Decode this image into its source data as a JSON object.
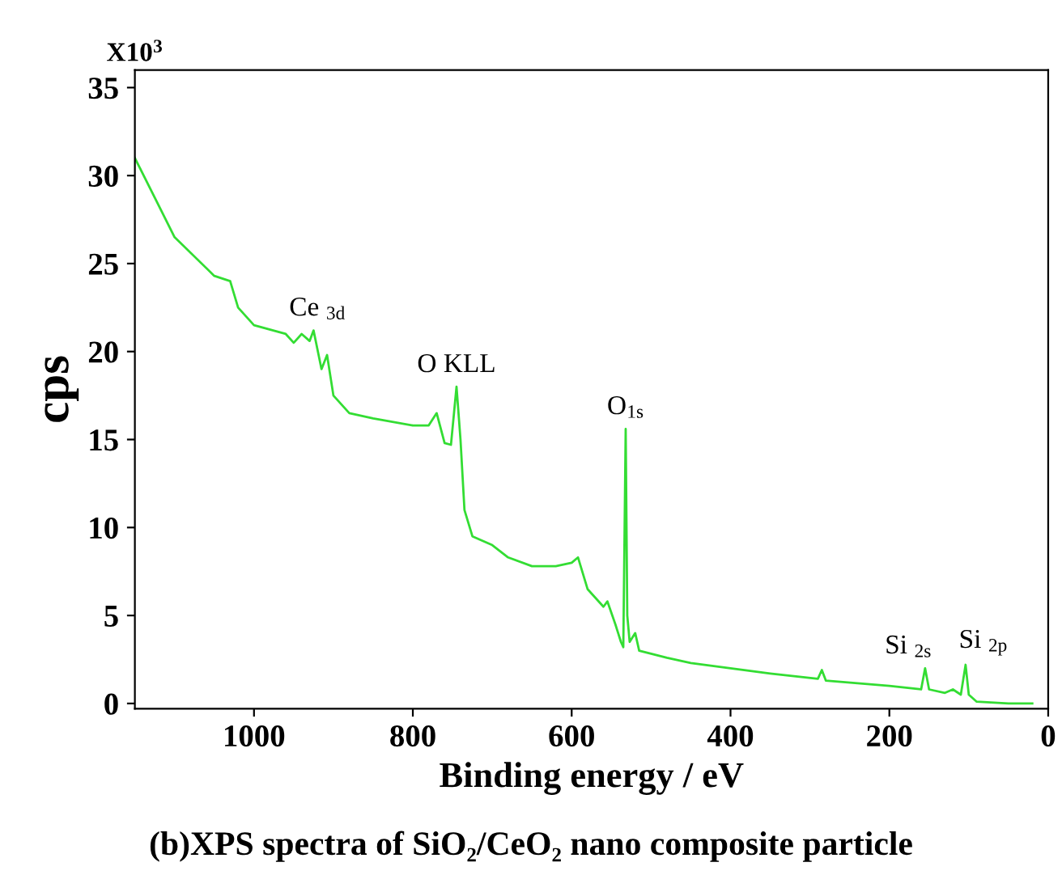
{
  "chart_data": {
    "type": "line",
    "title": "(b)XPS spectra of SiO₂/CeO₂ nano composite particle",
    "xlabel": "Binding energy / eV",
    "ylabel": "cps",
    "x": [
      1150,
      1100,
      1050,
      1030,
      1020,
      1000,
      960,
      950,
      940,
      930,
      925,
      915,
      908,
      900,
      880,
      850,
      800,
      780,
      770,
      760,
      752,
      745,
      740,
      735,
      725,
      700,
      680,
      650,
      620,
      600,
      592,
      580,
      560,
      555,
      545,
      538,
      535,
      532,
      530,
      527,
      520,
      515,
      480,
      450,
      400,
      350,
      290,
      285,
      280,
      200,
      160,
      155,
      150,
      130,
      120,
      110,
      104,
      100,
      90,
      50,
      20
    ],
    "series": [
      {
        "color": "#33dd33",
        "values": [
          31,
          26.5,
          24.3,
          24.0,
          22.5,
          21.5,
          21.0,
          20.5,
          21.0,
          20.6,
          21.2,
          19.0,
          19.8,
          17.5,
          16.5,
          16.2,
          15.8,
          15.8,
          16.5,
          14.8,
          14.7,
          18.0,
          15,
          11,
          9.5,
          9.0,
          8.3,
          7.8,
          7.8,
          8.0,
          8.3,
          6.5,
          5.5,
          5.8,
          4.5,
          3.5,
          3.2,
          15.6,
          5,
          3.5,
          4.0,
          3.0,
          2.6,
          2.3,
          2.0,
          1.7,
          1.4,
          1.9,
          1.3,
          1.0,
          0.8,
          2.0,
          0.8,
          0.6,
          0.8,
          0.5,
          2.2,
          0.5,
          0.1,
          0.0,
          0.0
        ]
      }
    ],
    "xlim": [
      1150,
      0
    ],
    "ylim": [
      -0.3,
      36
    ],
    "xticks": [
      1000,
      800,
      600,
      400,
      200,
      0
    ],
    "yticks": [
      0,
      5,
      10,
      15,
      20,
      25,
      30,
      35
    ],
    "grid": false,
    "legend": false,
    "line_style": "solid",
    "marker": "none",
    "annotations": [
      "X10$^{3}$",
      {
        "text": "Ce $_{3d}$",
        "x": 920,
        "y": 21.2
      },
      {
        "text": "O KLL",
        "x": 745,
        "y": 18.0
      },
      {
        "text": "O$_{1s}$",
        "x": 532,
        "y": 15.6
      },
      {
        "text": "Si $_{2s}$",
        "x": 155,
        "y": 2.0
      },
      {
        "text": "Si $_{2p}$",
        "x": 104,
        "y": 2.2
      }
    ]
  }
}
